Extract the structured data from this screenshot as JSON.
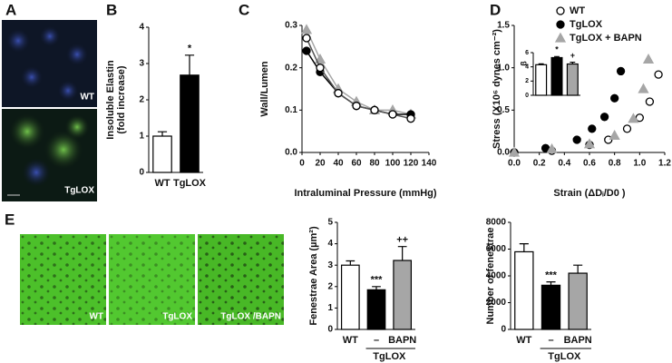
{
  "panel_labels": [
    "A",
    "B",
    "C",
    "D",
    "E"
  ],
  "images": {
    "A": [
      "WT",
      "TgLOX"
    ],
    "E": [
      "WT",
      "TgLOX",
      "TgLOX /BAPN"
    ]
  },
  "chart_data": [
    {
      "type": "bar",
      "ylabel": [
        "Insoluble Elastin",
        "(fold increase)"
      ],
      "categories": [
        "WT",
        "TgLOX"
      ],
      "values": [
        1.0,
        2.68
      ],
      "errors": [
        0.12,
        0.55
      ],
      "colors": [
        "#ffffff",
        "#000000"
      ],
      "annotations": [
        null,
        "*"
      ],
      "ylim": [
        0,
        4
      ],
      "yticks": [
        0,
        1,
        2,
        3,
        4
      ]
    },
    {
      "type": "line",
      "xlabel": "Intraluminal Pressure (mmHg)",
      "ylabel": "Wall/Lumen",
      "x": [
        5,
        20,
        40,
        60,
        80,
        100,
        120
      ],
      "series": [
        {
          "color": "#a6a6a6",
          "marker": "triangle",
          "values": [
            0.29,
            0.22,
            0.15,
            0.12,
            0.1,
            0.1,
            0.09
          ]
        },
        {
          "color": "#000000",
          "marker": "circle-filled",
          "values": [
            0.24,
            0.19,
            0.14,
            0.11,
            0.1,
            0.09,
            0.09
          ]
        },
        {
          "color": "#ffffff",
          "marker": "circle-open",
          "values": [
            0.27,
            0.2,
            0.14,
            0.11,
            0.1,
            0.09,
            0.08
          ]
        }
      ],
      "xlim": [
        0,
        140
      ],
      "xticks": [
        0,
        20,
        40,
        60,
        80,
        100,
        120,
        140
      ],
      "ylim": [
        0,
        0.3
      ],
      "yticks": [
        {
          "value": 0,
          "label": "0.0"
        },
        0.1,
        0.2,
        0.3
      ]
    },
    {
      "type": "scatter",
      "xlabel": "Strain (ΔDᵢ/D0 )",
      "ylabel": "Stress (X10⁶ dynes cm⁻²)",
      "series": [
        {
          "name": "WT",
          "color": "#ffffff",
          "marker": "circle-open",
          "x": [
            0,
            0.3,
            0.6,
            0.75,
            0.9,
            1.0,
            1.08,
            1.15
          ],
          "values": [
            0,
            0.02,
            0.09,
            0.15,
            0.28,
            0.41,
            0.6,
            0.92
          ]
        },
        {
          "name": "TgLOX",
          "color": "#000000",
          "marker": "circle-filled",
          "x": [
            0,
            0.25,
            0.5,
            0.62,
            0.72,
            0.8,
            0.85
          ],
          "values": [
            0,
            0.05,
            0.15,
            0.28,
            0.42,
            0.64,
            0.96
          ]
        },
        {
          "name": "TgLOX + BAPN",
          "color": "#a6a6a6",
          "marker": "triangle",
          "x": [
            0,
            0.3,
            0.6,
            0.8,
            0.95,
            1.03,
            1.07
          ],
          "values": [
            0,
            0.04,
            0.1,
            0.2,
            0.4,
            0.75,
            1.1
          ]
        }
      ],
      "xlim": [
        0,
        1.2
      ],
      "xticks": [
        {
          "value": 0,
          "label": "0.0"
        },
        0.2,
        0.4,
        0.6,
        0.8,
        {
          "value": 1,
          "label": "1.0"
        },
        1.2
      ],
      "ylim": [
        0,
        1.5
      ],
      "yticks": [
        {
          "value": 0,
          "label": "0.0"
        },
        0.5,
        {
          "value": 1,
          "label": "1.0"
        },
        1.5
      ]
    },
    {
      "type": "bar",
      "ylabel": "β",
      "values": [
        4.3,
        5.3,
        4.4
      ],
      "errors": [
        0.12,
        0.15,
        0.25
      ],
      "colors": [
        "#ffffff",
        "#000000",
        "#a6a6a6"
      ],
      "annotations": [
        null,
        "*",
        "+"
      ],
      "ylim": [
        0,
        6
      ],
      "yticks": [
        0,
        2,
        4,
        6
      ]
    },
    {
      "type": "bar",
      "ylabel": "Fenestrae Area (µm²)",
      "categories": [
        "WT",
        "–",
        "BAPN"
      ],
      "group_label": "TgLOX",
      "values": [
        3.0,
        1.85,
        3.22
      ],
      "errors": [
        0.2,
        0.15,
        0.65
      ],
      "colors": [
        "#ffffff",
        "#000000",
        "#a6a6a6"
      ],
      "annotations": [
        null,
        "***",
        "++"
      ],
      "ylim": [
        0,
        5
      ],
      "yticks": [
        0,
        1,
        2,
        3,
        4,
        5
      ]
    },
    {
      "type": "bar",
      "ylabel": "Number of fenestrae",
      "categories": [
        "WT",
        "–",
        "BAPN"
      ],
      "group_label": "TgLOX",
      "values": [
        5800,
        3300,
        4200
      ],
      "errors": [
        600,
        250,
        600
      ],
      "colors": [
        "#ffffff",
        "#000000",
        "#a6a6a6"
      ],
      "annotations": [
        null,
        "***",
        null
      ],
      "ylim": [
        0,
        8000
      ],
      "yticks": [
        0,
        2000,
        4000,
        6000,
        8000
      ]
    }
  ]
}
